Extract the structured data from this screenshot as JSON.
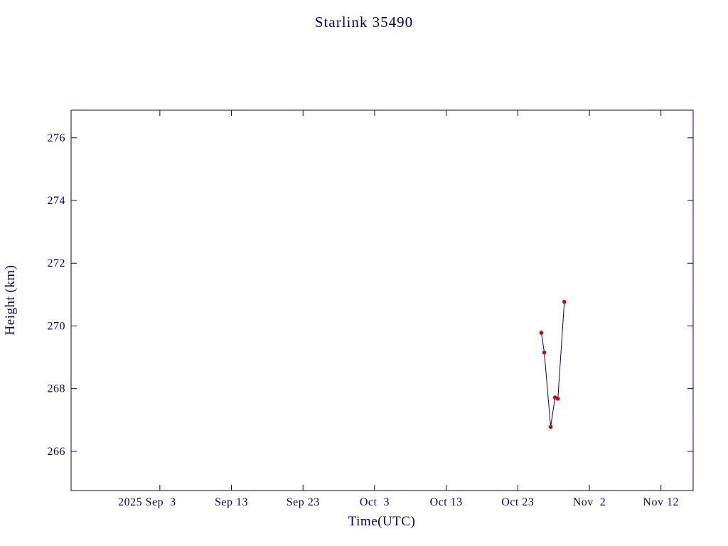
{
  "chart_data": {
    "type": "line",
    "title": "Starlink 35490",
    "xlabel": "Time(UTC)",
    "ylabel": "Height (km)",
    "grid": false,
    "legend": "none",
    "colors": {
      "axis": "#000080",
      "text": "#000080",
      "line": "#000080",
      "marker": "#d40000"
    },
    "x_axis": {
      "tick_labels": [
        "2025 Sep  3",
        "Sep 13",
        "Sep 23",
        "Oct  3",
        "Oct 13",
        "Oct 23",
        "Nov  2",
        "Nov 12"
      ],
      "tick_days_from_sep3": [
        0,
        10,
        20,
        30,
        40,
        50,
        60,
        70
      ],
      "domain_days_from_sep3": [
        -12.4,
        74.5
      ]
    },
    "y_axis": {
      "ticks": [
        266,
        268,
        270,
        272,
        274,
        276
      ],
      "domain": [
        264.75,
        276.88
      ]
    },
    "series": [
      {
        "name": "Height (km)",
        "marker": "red-dot",
        "x_days_from_sep3": [
          53.3,
          53.7,
          54.6,
          55.2,
          55.6,
          56.5
        ],
        "approx_dates_utc": [
          "2025-10-26",
          "2025-10-27",
          "2025-10-28",
          "2025-10-28",
          "2025-10-29",
          "2025-10-29"
        ],
        "y_km": [
          269.78,
          269.15,
          266.78,
          267.72,
          267.68,
          270.77
        ]
      }
    ]
  }
}
